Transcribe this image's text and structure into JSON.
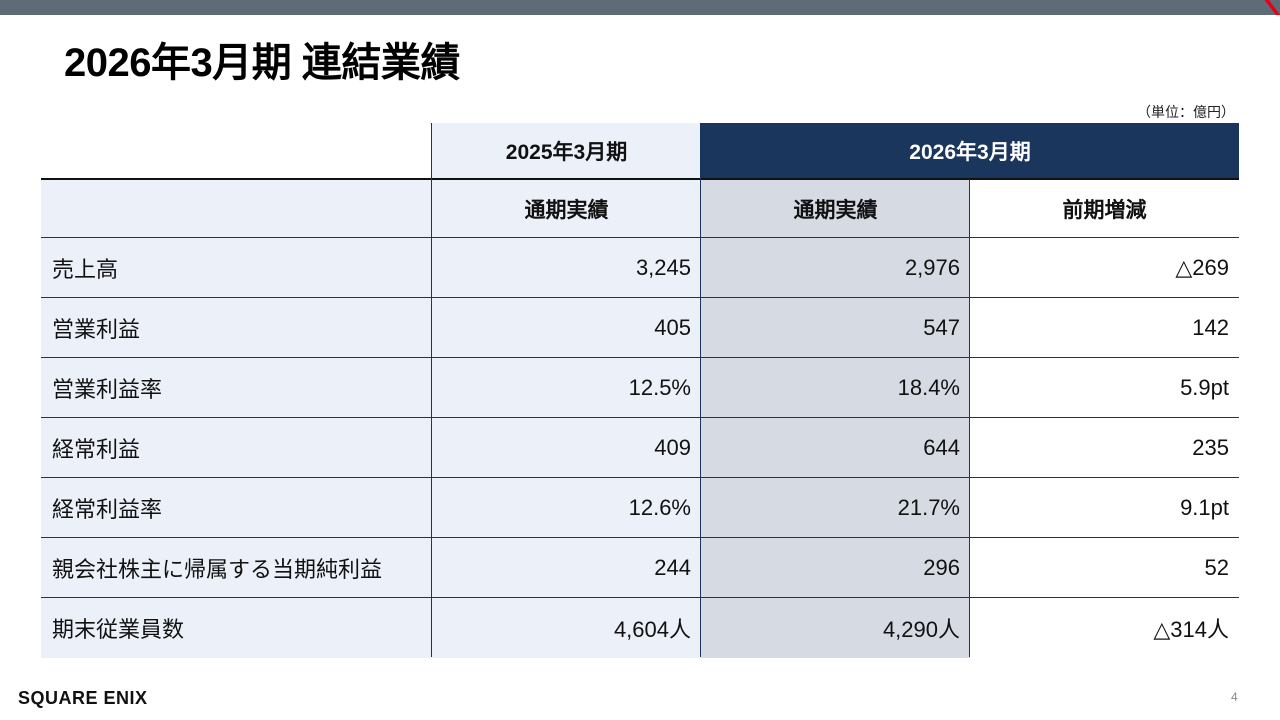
{
  "page": {
    "title": "2026年3月期 連結業績",
    "unit": "（単位：億円）",
    "logo": "SQUARE ENIX",
    "page_number": "4"
  },
  "table": {
    "header": {
      "prev_period": "2025年3月期",
      "curr_period": "2026年3月期"
    },
    "subheader": {
      "prev_actual": "通期実績",
      "curr_actual": "通期実績",
      "change": "前期増減"
    },
    "rows": [
      {
        "label": "売上高",
        "prev": "3,245",
        "curr": "2,976",
        "change": "△269"
      },
      {
        "label": "営業利益",
        "prev": "405",
        "curr": "547",
        "change": "142"
      },
      {
        "label": "営業利益率",
        "prev": "12.5%",
        "curr": "18.4%",
        "change": "5.9pt"
      },
      {
        "label": "経常利益",
        "prev": "409",
        "curr": "644",
        "change": "235"
      },
      {
        "label": "経常利益率",
        "prev": "12.6%",
        "curr": "21.7%",
        "change": "9.1pt"
      },
      {
        "label": "親会社株主に帰属する当期純利益",
        "prev": "244",
        "curr": "296",
        "change": "52"
      },
      {
        "label": "期末従業員数",
        "prev": "4,604人",
        "curr": "4,290人",
        "change": "△314人"
      }
    ]
  },
  "colors": {
    "top_bar": "#5f6b76",
    "header_navy": "#1b365d",
    "label_bg": "#ecf1f9",
    "current_bg": "#d6dbe3",
    "brand_red": "#e60012"
  }
}
